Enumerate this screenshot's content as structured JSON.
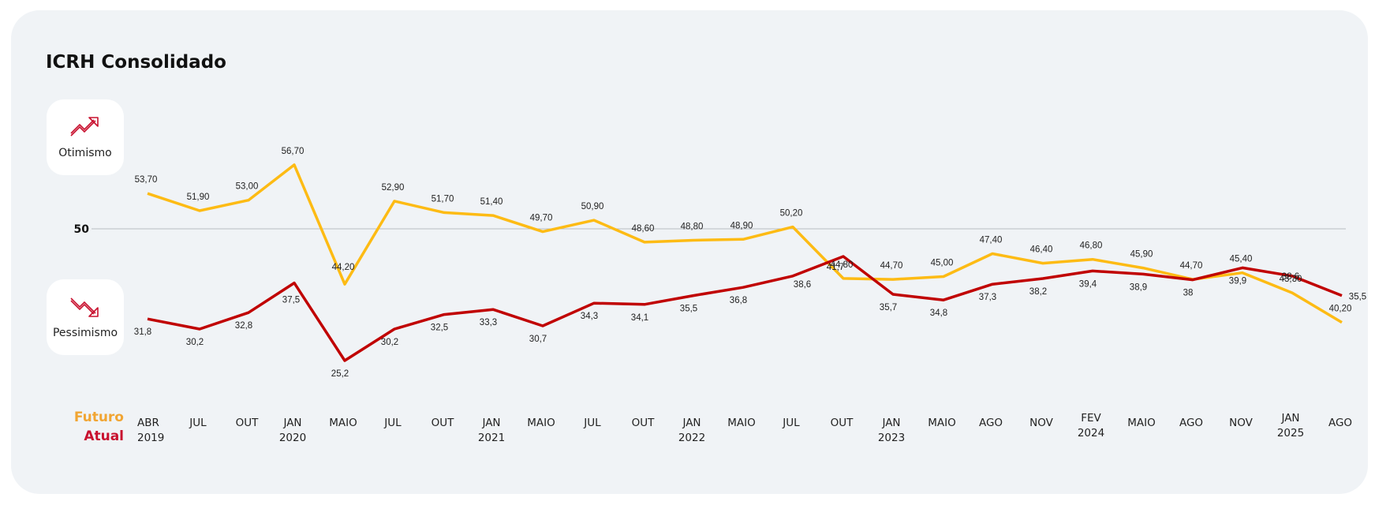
{
  "title": "ICRH Consolidado",
  "badges": {
    "optimism_label": "Otimismo",
    "optimism_icon": "trend-up-icon",
    "pessimism_label": "Pessimismo",
    "pessimism_icon": "trend-down-icon"
  },
  "legend": {
    "future": "Futuro",
    "current": "Atual"
  },
  "colors": {
    "future": "#fdbb14",
    "current": "#c00000",
    "reference_line": "#b8bcc2"
  },
  "chart_data": {
    "type": "line",
    "title": "ICRH Consolidado",
    "x": [
      [
        "ABR",
        "2019"
      ],
      [
        "JUL",
        ""
      ],
      [
        "OUT",
        ""
      ],
      [
        "JAN",
        "2020"
      ],
      [
        "MAIO",
        ""
      ],
      [
        "JUL",
        ""
      ],
      [
        "OUT",
        ""
      ],
      [
        "JAN",
        "2021"
      ],
      [
        "MAIO",
        ""
      ],
      [
        "JUL",
        ""
      ],
      [
        "OUT",
        ""
      ],
      [
        "JAN",
        "2022"
      ],
      [
        "MAIO",
        ""
      ],
      [
        "JUL",
        ""
      ],
      [
        "OUT",
        ""
      ],
      [
        "JAN",
        "2023"
      ],
      [
        "MAIO",
        ""
      ],
      [
        "AGO",
        ""
      ],
      [
        "NOV",
        ""
      ],
      [
        "FEV",
        "2024"
      ],
      [
        "MAIO",
        ""
      ],
      [
        "AGO",
        ""
      ],
      [
        "NOV",
        ""
      ],
      [
        "JAN",
        "2025"
      ],
      [
        "AGO",
        ""
      ]
    ],
    "series": [
      {
        "name": "Futuro",
        "values": [
          53.7,
          51.9,
          53.0,
          56.7,
          44.2,
          52.9,
          51.7,
          51.4,
          49.7,
          50.9,
          48.6,
          48.8,
          48.9,
          50.2,
          44.8,
          44.7,
          45.0,
          47.4,
          46.4,
          46.8,
          45.9,
          44.7,
          45.4,
          43.3,
          40.2
        ],
        "labels": [
          "53,70",
          "51,90",
          "53,00",
          "56,70",
          "44,20",
          "52,90",
          "51,70",
          "51,40",
          "49,70",
          "50,90",
          "48,60",
          "48,80",
          "48,90",
          "50,20",
          "44,80",
          "44,70",
          "45,00",
          "47,40",
          "46,40",
          "46,80",
          "45,90",
          "44,70",
          "45,40",
          "43,30",
          "40,20"
        ]
      },
      {
        "name": "Atual",
        "values": [
          31.8,
          30.2,
          32.8,
          37.5,
          25.2,
          30.2,
          32.5,
          33.3,
          30.7,
          34.3,
          34.1,
          35.5,
          36.8,
          38.6,
          41.7,
          35.7,
          34.8,
          37.3,
          38.2,
          39.4,
          38.9,
          38,
          39.9,
          38.6,
          35.5
        ],
        "labels": [
          "31,8",
          "30,2",
          "32,8",
          "37,5",
          "25,2",
          "30,2",
          "32,5",
          "33,3",
          "30,7",
          "34,3",
          "34,1",
          "35,5",
          "36,8",
          "38,6",
          "41,7",
          "35,7",
          "34,8",
          "37,3",
          "38,2",
          "39,4",
          "38,9",
          "38",
          "39,9",
          "38,6",
          "35,5"
        ]
      }
    ],
    "reference_line": {
      "value": 50,
      "label": "50"
    },
    "grid": false
  }
}
